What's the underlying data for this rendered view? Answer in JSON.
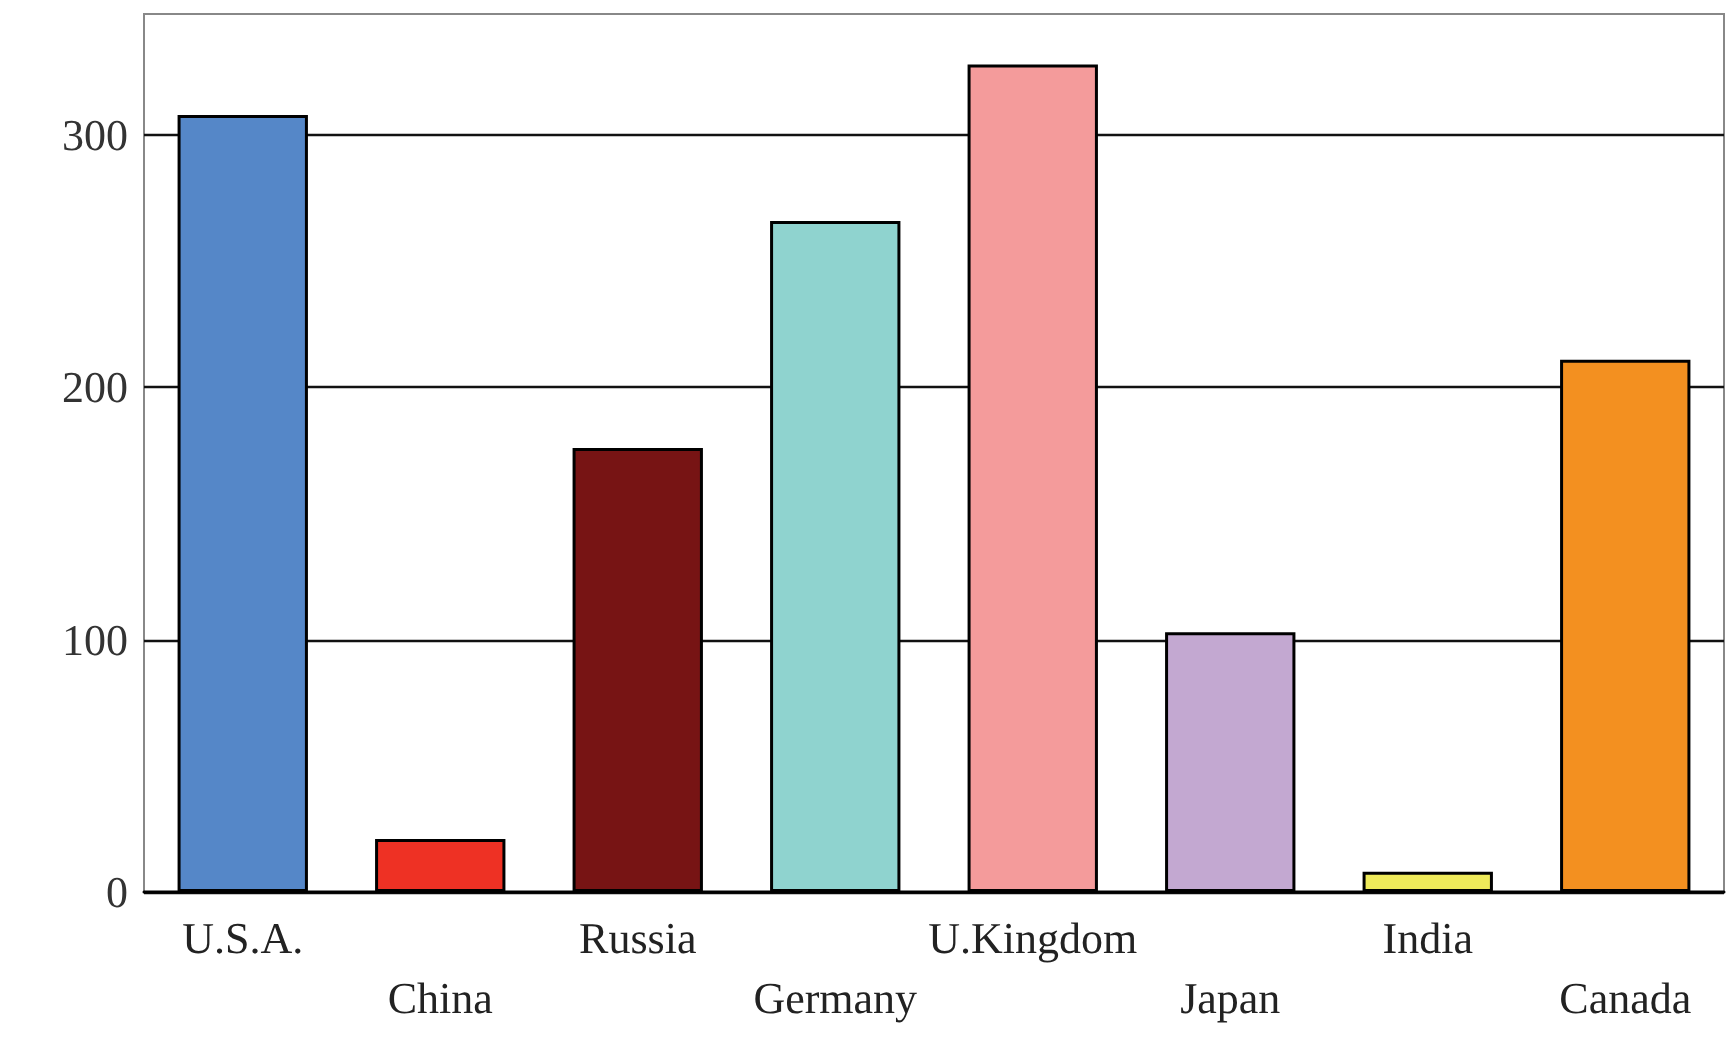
{
  "chart_data": {
    "type": "bar",
    "categories": [
      "U.S.A.",
      "China",
      "Russia",
      "Germany",
      "U.Kingdom",
      "Japan",
      "India",
      "Canada"
    ],
    "values": [
      308,
      21,
      176,
      266,
      328,
      103,
      8,
      211
    ],
    "colors": [
      "#5587c8",
      "#ee3124",
      "#771414",
      "#8fd3cf",
      "#f49b9b",
      "#c3a8d1",
      "#eeea5a",
      "#f39020"
    ],
    "ylim": [
      0,
      348
    ],
    "yticks": [
      0,
      100,
      200,
      300
    ],
    "grid": "y"
  }
}
